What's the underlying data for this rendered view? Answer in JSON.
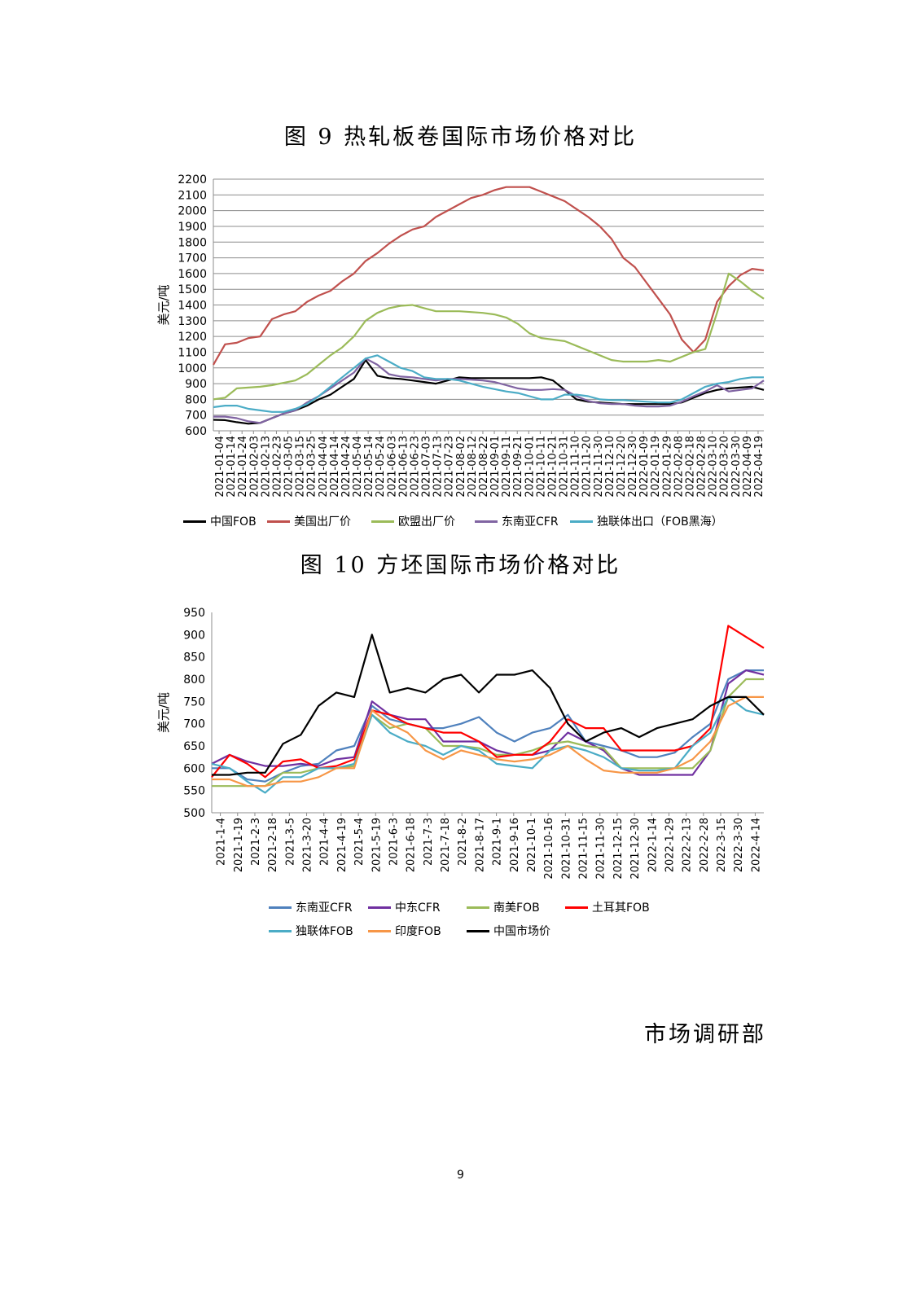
{
  "page": {
    "footer": "市场调研部",
    "page_number": "9"
  },
  "chart_data": [
    {
      "type": "line",
      "title": "图 9 热轧板卷国际市场价格对比",
      "ylabel": "美元/吨",
      "ylim": [
        600,
        2200
      ],
      "yticks": [
        600,
        700,
        800,
        900,
        1000,
        1100,
        1200,
        1300,
        1400,
        1500,
        1600,
        1700,
        1800,
        1900,
        2000,
        2100,
        2200
      ],
      "grid": true,
      "legend": "bottom",
      "x_ticks": [
        "2021-01-04",
        "2021-01-14",
        "2021-01-24",
        "2021-02-03",
        "2021-02-13",
        "2021-02-23",
        "2021-03-05",
        "2021-03-15",
        "2021-03-25",
        "2021-04-04",
        "2021-04-14",
        "2021-04-24",
        "2021-05-04",
        "2021-05-14",
        "2021-05-24",
        "2021-06-03",
        "2021-06-13",
        "2021-06-23",
        "2021-07-03",
        "2021-07-13",
        "2021-07-23",
        "2021-08-02",
        "2021-08-12",
        "2021-08-22",
        "2021-09-01",
        "2021-09-11",
        "2021-09-21",
        "2021-10-01",
        "2021-10-11",
        "2021-10-21",
        "2021-10-31",
        "2021-11-10",
        "2021-11-20",
        "2021-11-30",
        "2021-12-10",
        "2021-12-20",
        "2021-12-30",
        "2022-01-09",
        "2022-01-19",
        "2022-01-29",
        "2022-02-08",
        "2022-02-18",
        "2022-02-28",
        "2022-03-10",
        "2022-03-20",
        "2022-03-30",
        "2022-04-09",
        "2022-04-19"
      ],
      "series": [
        {
          "name": "中国FOB",
          "color": "#000000",
          "values": [
            670,
            668,
            655,
            645,
            650,
            680,
            710,
            730,
            760,
            800,
            830,
            880,
            930,
            1050,
            950,
            935,
            930,
            920,
            910,
            900,
            920,
            940,
            935,
            935,
            935,
            935,
            935,
            935,
            940,
            920,
            860,
            800,
            785,
            780,
            775,
            770,
            770,
            770,
            770,
            770,
            780,
            810,
            840,
            860,
            870,
            875,
            880,
            860
          ]
        },
        {
          "name": "美国出厂价",
          "color": "#c0504d",
          "values": [
            1020,
            1150,
            1160,
            1190,
            1200,
            1310,
            1340,
            1360,
            1420,
            1460,
            1490,
            1550,
            1600,
            1680,
            1730,
            1790,
            1840,
            1880,
            1900,
            1960,
            2000,
            2040,
            2080,
            2100,
            2130,
            2150,
            2150,
            2150,
            2120,
            2090,
            2060,
            2010,
            1960,
            1900,
            1820,
            1700,
            1640,
            1540,
            1440,
            1340,
            1180,
            1100,
            1180,
            1420,
            1520,
            1590,
            1630,
            1620
          ]
        },
        {
          "name": "欧盟出厂价",
          "color": "#9bbb59",
          "values": [
            800,
            810,
            870,
            875,
            880,
            890,
            905,
            920,
            960,
            1020,
            1080,
            1130,
            1200,
            1300,
            1350,
            1380,
            1395,
            1400,
            1380,
            1360,
            1360,
            1360,
            1355,
            1350,
            1340,
            1320,
            1280,
            1220,
            1190,
            1180,
            1170,
            1140,
            1110,
            1080,
            1050,
            1040,
            1040,
            1040,
            1050,
            1040,
            1070,
            1100,
            1120,
            1350,
            1600,
            1550,
            1490,
            1440
          ]
        },
        {
          "name": "东南亚CFR",
          "color": "#8064a2",
          "values": [
            690,
            690,
            680,
            660,
            650,
            680,
            710,
            730,
            780,
            820,
            870,
            920,
            970,
            1060,
            1020,
            960,
            945,
            940,
            930,
            920,
            930,
            930,
            925,
            920,
            910,
            890,
            870,
            860,
            860,
            865,
            860,
            820,
            790,
            775,
            770,
            770,
            760,
            755,
            755,
            760,
            785,
            820,
            850,
            890,
            850,
            860,
            870,
            920
          ]
        },
        {
          "name": "独联体出口（FOB黑海）",
          "color": "#4bacc6",
          "values": [
            750,
            760,
            760,
            740,
            730,
            720,
            720,
            740,
            770,
            820,
            880,
            940,
            1000,
            1060,
            1080,
            1040,
            1000,
            980,
            940,
            930,
            930,
            920,
            900,
            880,
            865,
            850,
            840,
            820,
            800,
            800,
            830,
            830,
            820,
            800,
            795,
            795,
            790,
            785,
            780,
            780,
            800,
            840,
            880,
            900,
            910,
            930,
            940,
            940
          ]
        }
      ]
    },
    {
      "type": "line",
      "title": "图 10 方坯国际市场价格对比",
      "ylabel": "美元/吨",
      "ylim": [
        500,
        950
      ],
      "yticks": [
        500,
        550,
        600,
        650,
        700,
        750,
        800,
        850,
        900,
        950
      ],
      "grid": false,
      "legend": "bottom",
      "x_ticks": [
        "2021-1-4",
        "2021-1-19",
        "2021-2-3",
        "2021-2-18",
        "2021-3-5",
        "2021-3-20",
        "2021-4-4",
        "2021-4-19",
        "2021-5-4",
        "2021-5-19",
        "2021-6-3",
        "2021-6-18",
        "2021-7-3",
        "2021-7-18",
        "2021-8-2",
        "2021-8-17",
        "2021-9-1",
        "2021-9-16",
        "2021-10-1",
        "2021-10-16",
        "2021-10-31",
        "2021-11-15",
        "2021-11-30",
        "2021-12-15",
        "2021-12-30",
        "2022-1-14",
        "2022-1-29",
        "2022-2-13",
        "2022-2-28",
        "2022-3-15",
        "2022-3-30",
        "2022-4-14"
      ],
      "series": [
        {
          "name": "东南亚CFR",
          "color": "#4f81bd",
          "values": [
            600,
            600,
            575,
            570,
            590,
            605,
            610,
            640,
            650,
            740,
            710,
            700,
            690,
            690,
            700,
            715,
            680,
            660,
            680,
            690,
            720,
            660,
            650,
            640,
            625,
            625,
            635,
            670,
            700,
            800,
            820,
            820
          ]
        },
        {
          "name": "中东CFR",
          "color": "#7030a0",
          "values": [
            610,
            630,
            615,
            605,
            605,
            610,
            605,
            620,
            625,
            750,
            720,
            710,
            710,
            660,
            660,
            660,
            640,
            630,
            630,
            640,
            680,
            660,
            640,
            600,
            585,
            585,
            585,
            585,
            640,
            790,
            820,
            810
          ]
        },
        {
          "name": "南美FOB",
          "color": "#9bbb59",
          "values": [
            560,
            560,
            560,
            560,
            590,
            590,
            600,
            600,
            605,
            720,
            690,
            700,
            690,
            650,
            650,
            645,
            630,
            630,
            640,
            655,
            660,
            650,
            645,
            600,
            600,
            600,
            600,
            600,
            640,
            760,
            800,
            800
          ]
        },
        {
          "name": "土耳其FOB",
          "color": "#ff0000",
          "values": [
            580,
            630,
            610,
            580,
            615,
            620,
            600,
            605,
            620,
            730,
            720,
            700,
            690,
            680,
            680,
            660,
            625,
            630,
            630,
            660,
            710,
            690,
            690,
            640,
            640,
            640,
            640,
            650,
            690,
            920,
            895,
            870
          ]
        },
        {
          "name": "独联体FOB",
          "color": "#4bacc6",
          "values": [
            610,
            600,
            570,
            545,
            580,
            580,
            600,
            600,
            610,
            720,
            680,
            660,
            650,
            630,
            650,
            640,
            610,
            605,
            600,
            640,
            650,
            640,
            625,
            600,
            595,
            595,
            600,
            650,
            680,
            760,
            730,
            720
          ]
        },
        {
          "name": "印度FOB",
          "color": "#f79646",
          "values": [
            575,
            575,
            560,
            560,
            570,
            570,
            580,
            600,
            600,
            730,
            700,
            680,
            640,
            620,
            640,
            630,
            620,
            615,
            620,
            630,
            650,
            620,
            595,
            590,
            590,
            590,
            600,
            620,
            660,
            740,
            760,
            760
          ]
        },
        {
          "name": "中国市场价",
          "color": "#000000",
          "values": [
            585,
            585,
            590,
            590,
            655,
            675,
            740,
            770,
            760,
            900,
            770,
            780,
            770,
            800,
            810,
            770,
            810,
            810,
            820,
            780,
            700,
            660,
            680,
            690,
            670,
            690,
            700,
            710,
            740,
            760,
            760,
            720
          ]
        }
      ]
    }
  ]
}
